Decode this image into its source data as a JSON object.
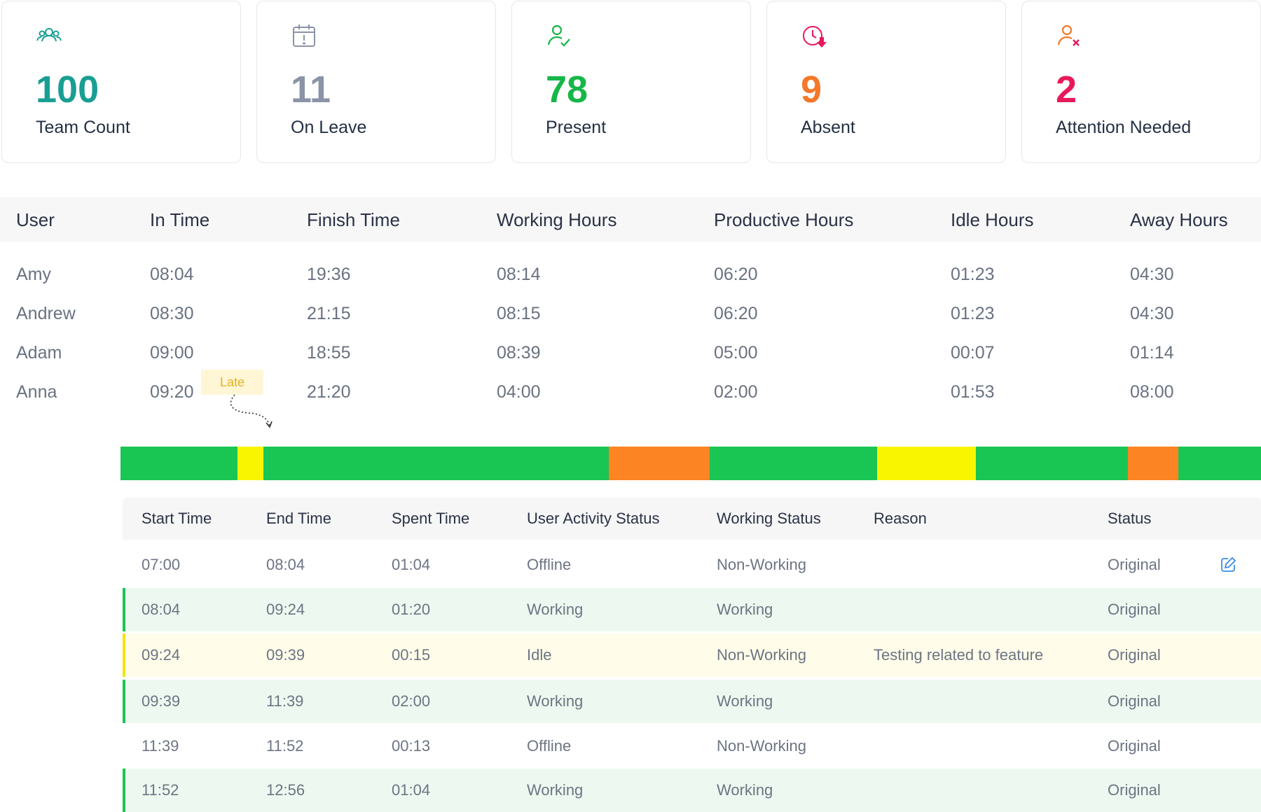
{
  "cards": [
    {
      "value": "100",
      "label": "Team Count",
      "color": "#1a9e93",
      "icon": "team-icon"
    },
    {
      "value": "11",
      "label": "On Leave",
      "color": "#8b93a7",
      "icon": "calendar-alert-icon"
    },
    {
      "value": "78",
      "label": "Present",
      "color": "#17b649",
      "icon": "user-check-icon"
    },
    {
      "value": "9",
      "label": "Absent",
      "color": "#f4772a",
      "icon": "clock-down-icon"
    },
    {
      "value": "2",
      "label": "Attention Needed",
      "color": "#e8195a",
      "icon": "user-x-icon"
    }
  ],
  "attendance": {
    "headers": [
      "User",
      "In Time",
      "Finish Time",
      "Working Hours",
      "Productive Hours",
      "Idle Hours",
      "Away Hours"
    ],
    "rows": [
      [
        "Amy",
        "08:04",
        "19:36",
        "08:14",
        "06:20",
        "01:23",
        "04:30"
      ],
      [
        "Andrew",
        "08:30",
        "21:15",
        "08:15",
        "06:20",
        "01:23",
        "04:30"
      ],
      [
        "Adam",
        "09:00",
        "18:55",
        "08:39",
        "05:00",
        "00:07",
        "01:14"
      ],
      [
        "Anna",
        "09:20",
        "21:20",
        "04:00",
        "02:00",
        "01:53",
        "08:00"
      ]
    ],
    "late_badge": "Late"
  },
  "timeline": {
    "colors": {
      "working": "#19c553",
      "idle": "#f9f500",
      "offline": "#fd8423"
    },
    "segments": [
      {
        "status": "working",
        "share": 0.1023
      },
      {
        "status": "idle",
        "share": 0.0226
      },
      {
        "status": "working",
        "share": 0.3027
      },
      {
        "status": "offline",
        "share": 0.0883
      },
      {
        "status": "working",
        "share": 0.1469
      },
      {
        "status": "idle",
        "share": 0.0869
      },
      {
        "status": "working",
        "share": 0.1335
      },
      {
        "status": "offline",
        "share": 0.0445
      },
      {
        "status": "working",
        "share": 0.0723
      }
    ]
  },
  "activity": {
    "headers": [
      "Start Time",
      "End Time",
      "Spent Time",
      "User Activity Status",
      "Working Status",
      "Reason",
      "Status"
    ],
    "rows": [
      {
        "type": "offline",
        "cells": [
          "07:00",
          "08:04",
          "01:04",
          "Offline",
          "Non-Working",
          "",
          "Original"
        ],
        "editable": true
      },
      {
        "type": "working",
        "cells": [
          "08:04",
          "09:24",
          "01:20",
          "Working",
          "Working",
          "",
          "Original"
        ],
        "editable": false
      },
      {
        "type": "idle",
        "cells": [
          "09:24",
          "09:39",
          "00:15",
          "Idle",
          "Non-Working",
          "Testing related to feature",
          "Original"
        ],
        "editable": false
      },
      {
        "type": "working",
        "cells": [
          "09:39",
          "11:39",
          "02:00",
          "Working",
          "Working",
          "",
          "Original"
        ],
        "editable": false
      },
      {
        "type": "offline",
        "cells": [
          "11:39",
          "11:52",
          "00:13",
          "Offline",
          "Non-Working",
          "",
          "Original"
        ],
        "editable": false
      },
      {
        "type": "working",
        "cells": [
          "11:52",
          "12:56",
          "01:04",
          "Working",
          "Working",
          "",
          "Original"
        ],
        "editable": false
      }
    ],
    "edit_icon": "edit-icon"
  }
}
